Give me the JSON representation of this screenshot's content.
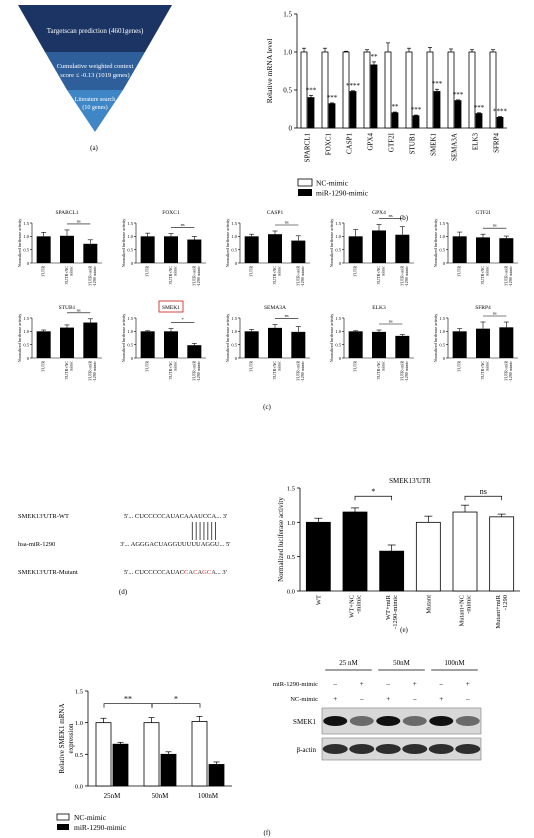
{
  "panel_labels": {
    "a": "(a)",
    "b": "(b)",
    "c": "(c)",
    "d": "(d)",
    "e": "(e)",
    "f": "(f)"
  },
  "funnel": {
    "level1": "Targetscan prediction (4601genes)",
    "level2_line1": "Cumulative weighted context",
    "level2_line2": "score ≤ -0.13 (1019 genes)",
    "level3_line1": "Literature search",
    "level3_line2": "(10 genes)",
    "colors": [
      "#1b3463",
      "#2f5f9a",
      "#3f86c6"
    ]
  },
  "legend": {
    "nc": "NC-mimic",
    "mir": "miR-1290-mimic"
  },
  "panel_d": {
    "rows": [
      {
        "label": "SMEK13'UTR-WT",
        "prefix": "5'... CUCCCCCAUAC",
        "site": "AAAUCCA",
        "suffix": "... 3'"
      },
      {
        "label": "hsa-miR-1290",
        "prefix": "3'... AGGGACUAGGUU",
        "site": "UUUAGGU",
        "suffix": "... 5'"
      },
      {
        "label": "SMEK13'UTR-Mutant",
        "prefix": "5'... CUCCCCCAUAC",
        "site": "CACAGCA",
        "suffix": "... 3'"
      }
    ],
    "mutant_color": "#d0312d"
  },
  "panel_c_xlabels": [
    "3'UTR",
    "3'UTR+NC mimic",
    "3'UTR+miR -1290 mimic"
  ],
  "blot": {
    "concentrations": [
      "25 nM",
      "50nM",
      "100nM"
    ],
    "row_labels": [
      "miR-1290-mimic",
      "NC-mimic"
    ],
    "mir_signs": [
      "–",
      "+",
      "–",
      "+",
      "–",
      "+"
    ],
    "nc_signs": [
      "+",
      "–",
      "+",
      "–",
      "+",
      "–"
    ],
    "band_labels": [
      "SMEK1",
      "β-actin"
    ]
  },
  "chart_data": [
    {
      "id": "b",
      "type": "bar",
      "ylabel": "Relative mRNA level",
      "ylim": [
        0,
        1.5
      ],
      "yticks": [
        "0",
        "0.5",
        "1.0",
        "1.5"
      ],
      "categories": [
        "SPARCL1",
        "FOXC1",
        "CASP1",
        "GPX4",
        "GTF2I",
        "STUB1",
        "SMEK1",
        "SEMA3A",
        "ELK3",
        "SFRP4"
      ],
      "series": [
        {
          "name": "NC-mimic",
          "values": [
            1.0,
            1.0,
            1.0,
            1.0,
            1.0,
            1.0,
            1.0,
            1.0,
            1.0,
            1.0
          ],
          "err": [
            0.05,
            0.05,
            0.01,
            0.03,
            0.12,
            0.05,
            0.06,
            0.04,
            0.03,
            0.03
          ]
        },
        {
          "name": "miR-1290-mimic",
          "values": [
            0.4,
            0.32,
            0.48,
            0.83,
            0.2,
            0.16,
            0.48,
            0.36,
            0.19,
            0.14
          ],
          "err": [
            0.03,
            0.01,
            0.01,
            0.04,
            0.01,
            0.01,
            0.03,
            0.01,
            0.01,
            0.01
          ]
        }
      ],
      "sig": [
        "***",
        "***",
        "****",
        "**",
        "**",
        "***",
        "***",
        "***",
        "***",
        "****"
      ]
    },
    {
      "id": "c",
      "type": "bar",
      "ylabel": "Normalized luciferase activity",
      "ylim": [
        0,
        1.5
      ],
      "yticks": [
        "0",
        "0.5",
        "1.0",
        "1.5"
      ],
      "panels": [
        {
          "title": "SPARCL1",
          "values": [
            1.0,
            1.02,
            0.72
          ],
          "err": [
            0.15,
            0.22,
            0.15
          ],
          "sig": "ns"
        },
        {
          "title": "FOXC1",
          "values": [
            1.0,
            1.0,
            0.88
          ],
          "err": [
            0.12,
            0.1,
            0.12
          ],
          "sig": "ns"
        },
        {
          "title": "CASP1",
          "values": [
            1.0,
            1.08,
            0.84
          ],
          "err": [
            0.08,
            0.12,
            0.18
          ],
          "sig": "ns"
        },
        {
          "title": "GPX4",
          "values": [
            1.0,
            1.22,
            1.06
          ],
          "err": [
            0.25,
            0.22,
            0.3
          ],
          "sig": "ns"
        },
        {
          "title": "GTF2I",
          "values": [
            1.0,
            0.96,
            0.93
          ],
          "err": [
            0.16,
            0.12,
            0.08
          ],
          "sig": "ns"
        },
        {
          "title": "STUB1",
          "values": [
            1.0,
            1.14,
            1.33
          ],
          "err": [
            0.05,
            0.1,
            0.14
          ],
          "sig": "ns"
        },
        {
          "title": "SMEK1",
          "values": [
            1.0,
            1.0,
            0.48
          ],
          "err": [
            0.02,
            0.1,
            0.07
          ],
          "sig": "*",
          "boxed": true
        },
        {
          "title": "SEMA3A",
          "values": [
            1.0,
            1.13,
            0.98
          ],
          "err": [
            0.07,
            0.12,
            0.2
          ],
          "sig": "ns"
        },
        {
          "title": "ELK3",
          "values": [
            1.0,
            0.98,
            0.83
          ],
          "err": [
            0.02,
            0.07,
            0.05
          ],
          "sig": "ns"
        },
        {
          "title": "SFRP4",
          "values": [
            1.0,
            1.1,
            1.15
          ],
          "err": [
            0.1,
            0.25,
            0.2
          ],
          "sig": "ns"
        }
      ]
    },
    {
      "id": "e",
      "type": "bar",
      "title": "SMEK13'UTR",
      "ylabel": "Normalized luciferase activity",
      "ylim": [
        0,
        1.5
      ],
      "yticks": [
        "0.0",
        "0.5",
        "1.0",
        "1.5"
      ],
      "categories": [
        "WT",
        "WT+NC -mimic",
        "WT+miR -1290-mimic",
        "Mutant",
        "Mutant+NC -mimic",
        "Mutant+miR -1290"
      ],
      "values": [
        1.0,
        1.15,
        0.58,
        1.0,
        1.15,
        1.08
      ],
      "err": [
        0.06,
        0.06,
        0.09,
        0.09,
        0.1,
        0.04
      ],
      "filled": [
        true,
        true,
        true,
        false,
        false,
        false
      ],
      "sig": [
        "*",
        "ns"
      ]
    },
    {
      "id": "f",
      "type": "bar",
      "ylabel": "Relative SMEK1 mRNA expression",
      "ylim": [
        0,
        1.5
      ],
      "yticks": [
        "0.0",
        "0.5",
        "1.0",
        "1.5"
      ],
      "categories": [
        "25nM",
        "50nM",
        "100nM"
      ],
      "series": [
        {
          "name": "NC-mimic",
          "values": [
            1.0,
            1.0,
            1.02
          ],
          "err": [
            0.07,
            0.08,
            0.08
          ]
        },
        {
          "name": "miR-1290-mimic",
          "values": [
            0.66,
            0.5,
            0.34
          ],
          "err": [
            0.03,
            0.04,
            0.04
          ]
        }
      ],
      "sig": [
        "**",
        "*"
      ]
    }
  ]
}
